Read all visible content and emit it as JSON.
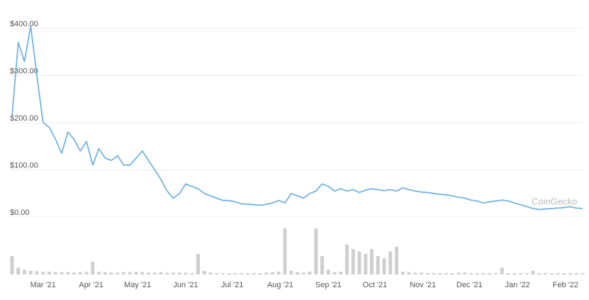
{
  "chart_data": {
    "type": "line",
    "xlim": [
      0,
      92
    ],
    "xticks": [
      {
        "value": 5,
        "label": "Mar '21"
      },
      {
        "value": 12.75,
        "label": "Apr '21"
      },
      {
        "value": 20.25,
        "label": "May '21"
      },
      {
        "value": 28,
        "label": "Jun '21"
      },
      {
        "value": 35.5,
        "label": "Jul '21"
      },
      {
        "value": 43.25,
        "label": "Aug '21"
      },
      {
        "value": 51,
        "label": "Sep '21"
      },
      {
        "value": 58.5,
        "label": "Oct '21"
      },
      {
        "value": 66.25,
        "label": "Nov '21"
      },
      {
        "value": 73.75,
        "label": "Dec '21"
      },
      {
        "value": 81.5,
        "label": "Jan '22"
      },
      {
        "value": 89.25,
        "label": "Feb '22"
      }
    ],
    "ylim": [
      0,
      400
    ],
    "yticks": [
      {
        "value": 0,
        "label": "$0.00"
      },
      {
        "value": 100,
        "label": "$100.00"
      },
      {
        "value": 200,
        "label": "$200.00"
      },
      {
        "value": 300,
        "label": "$300.00"
      },
      {
        "value": 400,
        "label": "$400.00"
      }
    ],
    "grid": true,
    "watermark": "CoinGecko",
    "series": [
      {
        "color": "#72b4e1",
        "values": [
          215,
          370,
          330,
          405,
          300,
          200,
          190,
          165,
          135,
          180,
          165,
          140,
          160,
          110,
          145,
          125,
          120,
          130,
          110,
          110,
          125,
          140,
          120,
          100,
          80,
          55,
          40,
          50,
          70,
          65,
          60,
          50,
          45,
          40,
          35,
          35,
          32,
          28,
          27,
          26,
          25,
          27,
          30,
          35,
          30,
          50,
          45,
          40,
          50,
          55,
          70,
          65,
          55,
          60,
          55,
          58,
          52,
          57,
          60,
          58,
          56,
          58,
          55,
          62,
          58,
          55,
          53,
          52,
          50,
          48,
          47,
          45,
          42,
          40,
          36,
          34,
          30,
          32,
          34,
          36,
          34,
          30,
          26,
          22,
          18,
          16,
          17,
          18,
          19,
          20,
          22,
          19,
          18
        ]
      }
    ],
    "volume": {
      "color": "#cfcfcf",
      "ylim": [
        0,
        100
      ],
      "values": [
        40,
        15,
        10,
        8,
        7,
        6,
        6,
        5,
        5,
        5,
        4,
        5,
        6,
        28,
        6,
        5,
        4,
        4,
        5,
        5,
        6,
        5,
        4,
        4,
        5,
        4,
        4,
        4,
        4,
        3,
        45,
        8,
        4,
        3,
        3,
        3,
        3,
        3,
        3,
        3,
        3,
        4,
        5,
        6,
        100,
        8,
        5,
        4,
        6,
        100,
        40,
        10,
        5,
        6,
        65,
        55,
        50,
        45,
        55,
        40,
        35,
        50,
        60,
        6,
        5,
        4,
        4,
        3,
        3,
        3,
        3,
        3,
        4,
        4,
        3,
        3,
        3,
        3,
        3,
        15,
        3,
        3,
        3,
        3,
        8,
        3,
        3,
        3,
        3,
        3,
        3,
        3,
        3
      ]
    }
  }
}
